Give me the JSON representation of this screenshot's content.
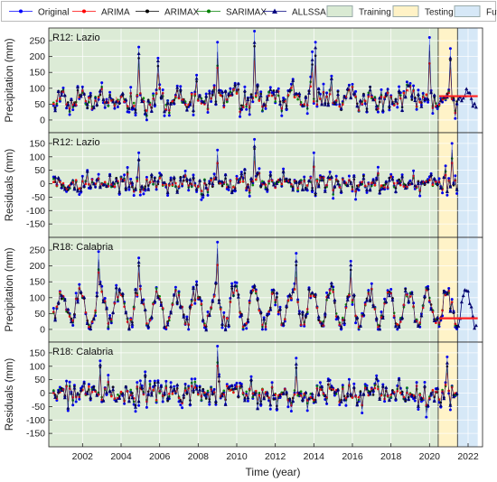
{
  "chart_data": {
    "type": "line",
    "legend": {
      "placement": "top",
      "items": [
        {
          "name": "Original",
          "color": "#0000ff",
          "marker": "dot"
        },
        {
          "name": "ARIMA",
          "color": "#ff0000",
          "marker": "dot"
        },
        {
          "name": "ARIMAX",
          "color": "#000000",
          "marker": "dot"
        },
        {
          "name": "SARIMAX",
          "color": "#008000",
          "marker": "dot"
        },
        {
          "name": "ALLSSA",
          "color": "#000080",
          "marker": "triangle"
        },
        {
          "name": "Training",
          "color": "#d9ead3",
          "marker": "patch"
        },
        {
          "name": "Testing",
          "color": "#fff2c6",
          "marker": "patch"
        },
        {
          "name": "Future",
          "color": "#d6e8f7",
          "marker": "patch"
        }
      ]
    },
    "xlabel": "Time (year)",
    "xlim": [
      2000.25,
      2022.75
    ],
    "xticks": [
      "2002",
      "2004",
      "2006",
      "2008",
      "2010",
      "2012",
      "2014",
      "2016",
      "2018",
      "2020",
      "2022"
    ],
    "periods": {
      "training": [
        2000.25,
        2020.45
      ],
      "testing": [
        2020.45,
        2021.45
      ],
      "future": [
        2021.45,
        2022.5
      ]
    },
    "grid": true,
    "panels": [
      {
        "label": "R12: Lazio",
        "ylabel": "Precipitation (mm)",
        "ylim": [
          -40,
          290
        ],
        "yticks": [
          "0",
          "50",
          "100",
          "150",
          "200",
          "250"
        ],
        "kind": "precip",
        "seed": 17,
        "mean": 65,
        "amp": 18,
        "spread": 38,
        "spikes": [
          [
            2004.9,
            230
          ],
          [
            2005.9,
            195
          ],
          [
            2009.0,
            245
          ],
          [
            2010.9,
            280
          ],
          [
            2013.9,
            215
          ],
          [
            2014.1,
            245
          ],
          [
            2020.0,
            260
          ],
          [
            2021.1,
            225
          ]
        ],
        "arima_future": 75
      },
      {
        "label": "R12: Lazio",
        "ylabel": "Residuals (mm)",
        "ylim": [
          -200,
          190
        ],
        "yticks": [
          "-150",
          "-100",
          "-50",
          "0",
          "50",
          "100",
          "150"
        ],
        "kind": "resid",
        "seed": 41,
        "spread": 38,
        "spikes": [
          [
            2004.9,
            115
          ],
          [
            2009.0,
            125
          ],
          [
            2010.9,
            165
          ],
          [
            2014.0,
            115
          ],
          [
            2021.2,
            150
          ]
        ]
      },
      {
        "label": "R18: Calabria",
        "ylabel": "Precipitation (mm)",
        "ylim": [
          -40,
          290
        ],
        "yticks": [
          "0",
          "50",
          "100",
          "150",
          "200",
          "250"
        ],
        "kind": "precip",
        "seed": 73,
        "mean": 68,
        "amp": 58,
        "spread": 30,
        "spikes": [
          [
            2002.8,
            245
          ],
          [
            2004.9,
            225
          ],
          [
            2009.0,
            275
          ],
          [
            2013.1,
            240
          ],
          [
            2015.9,
            215
          ]
        ],
        "arima_future": 35
      },
      {
        "label": "R18: Calabria",
        "ylabel": "Residuals (mm)",
        "ylim": [
          -200,
          190
        ],
        "yticks": [
          "-150",
          "-100",
          "-50",
          "0",
          "50",
          "100",
          "150"
        ],
        "kind": "resid",
        "seed": 97,
        "spread": 45,
        "spikes": [
          [
            2009.0,
            175
          ],
          [
            2002.9,
            120
          ],
          [
            2013.1,
            130
          ],
          [
            2020.9,
            135
          ]
        ]
      }
    ]
  }
}
